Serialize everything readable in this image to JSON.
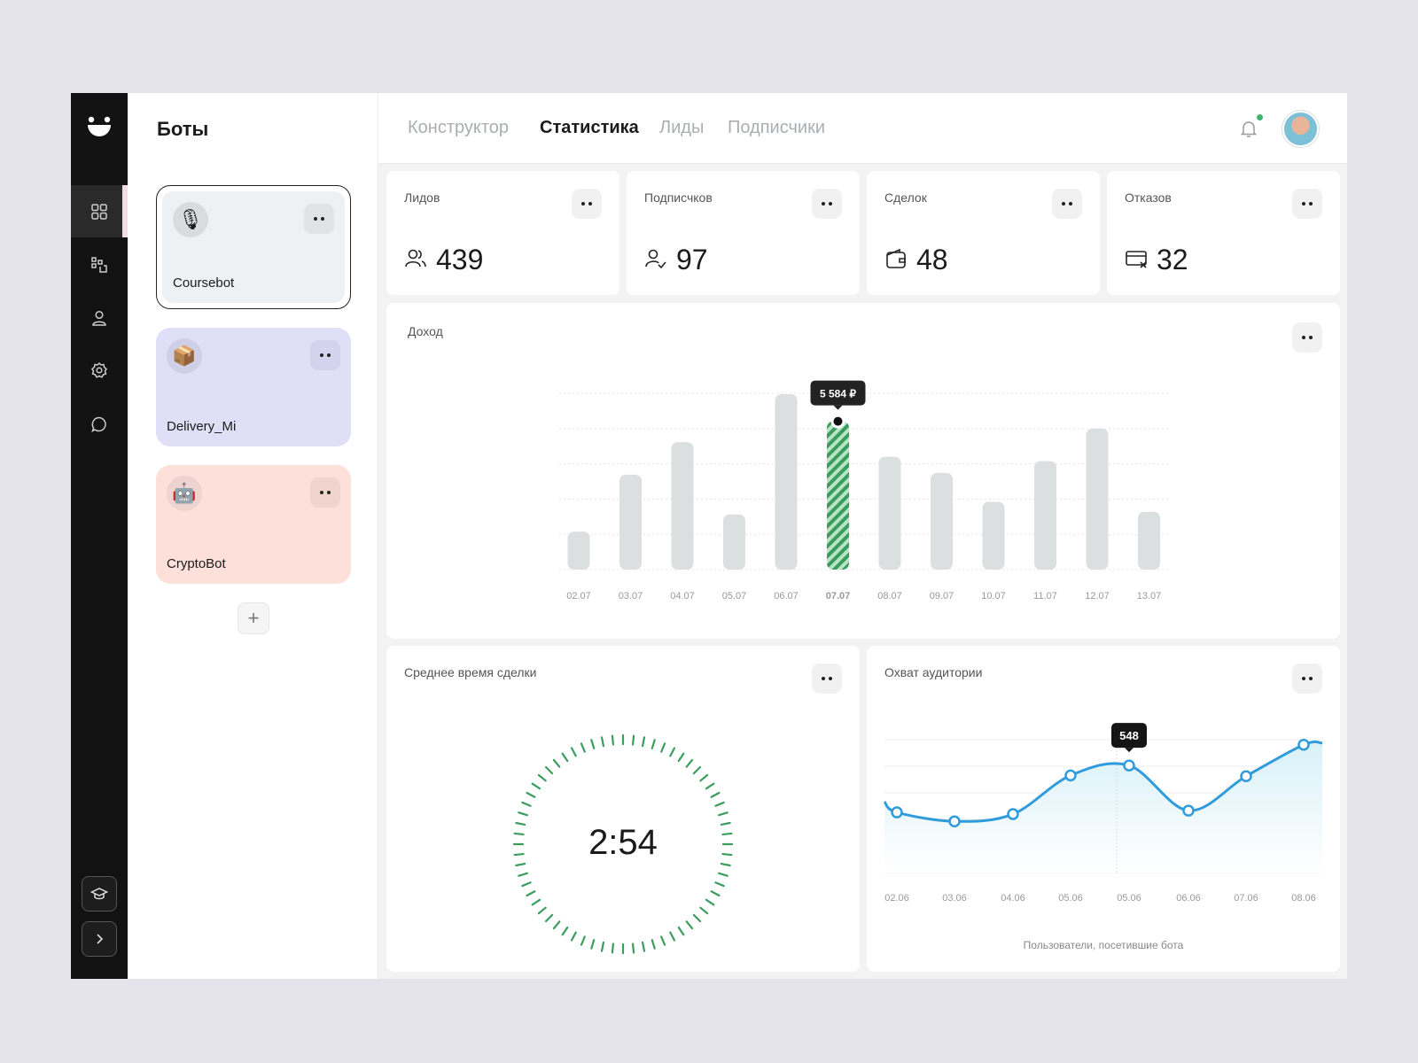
{
  "sidebar": {
    "title": "Боты",
    "bots": [
      {
        "name": "Coursebot"
      },
      {
        "name": "Delivery_Mi"
      },
      {
        "name": "CryptoBot"
      }
    ],
    "add_label": "+"
  },
  "nav": {
    "tabs": [
      "Конструктор",
      "Статистика",
      "Лиды",
      "Подписчики"
    ],
    "active": "Статистика"
  },
  "stats": [
    {
      "label": "Лидов",
      "value": "439",
      "icon": "users-icon"
    },
    {
      "label": "Подписчков",
      "value": "97",
      "icon": "user-check-icon"
    },
    {
      "label": "Сделок",
      "value": "48",
      "icon": "wallet-icon"
    },
    {
      "label": "Отказов",
      "value": "32",
      "icon": "card-cancel-icon"
    }
  ],
  "colors": {
    "accent_green": "#3a9d5d",
    "line_blue": "#2f9bdc",
    "dark": "#121212"
  },
  "chart_data": [
    {
      "type": "bar",
      "title": "Доход",
      "categories": [
        "02.07",
        "03.07",
        "04.07",
        "05.07",
        "06.07",
        "07.07",
        "08.07",
        "09.07",
        "10.07",
        "11.07",
        "12.07",
        "13.07"
      ],
      "values": [
        1430,
        3575,
        4800,
        2077,
        6605,
        5584,
        4256,
        3643,
        2554,
        4086,
        5312,
        2179
      ],
      "highlight_index": 5,
      "highlight_label": "5 584 ₽",
      "ylim": [
        0,
        6640
      ],
      "grid": true
    },
    {
      "type": "line",
      "title": "Охват аудитории",
      "categories": [
        "02.06",
        "03.06",
        "04.06",
        "05.06",
        "05.06",
        "06.06",
        "07.06",
        "08.06"
      ],
      "values": [
        308,
        262,
        299,
        497,
        548,
        317,
        493,
        654
      ],
      "highlight_index": 4,
      "highlight_label": "548",
      "ylim": [
        0,
        680
      ],
      "xlabel": "Пользователи, посетившие бота",
      "grid": true
    }
  ],
  "timer": {
    "title": "Среднее время сделки",
    "value": "2:54"
  }
}
